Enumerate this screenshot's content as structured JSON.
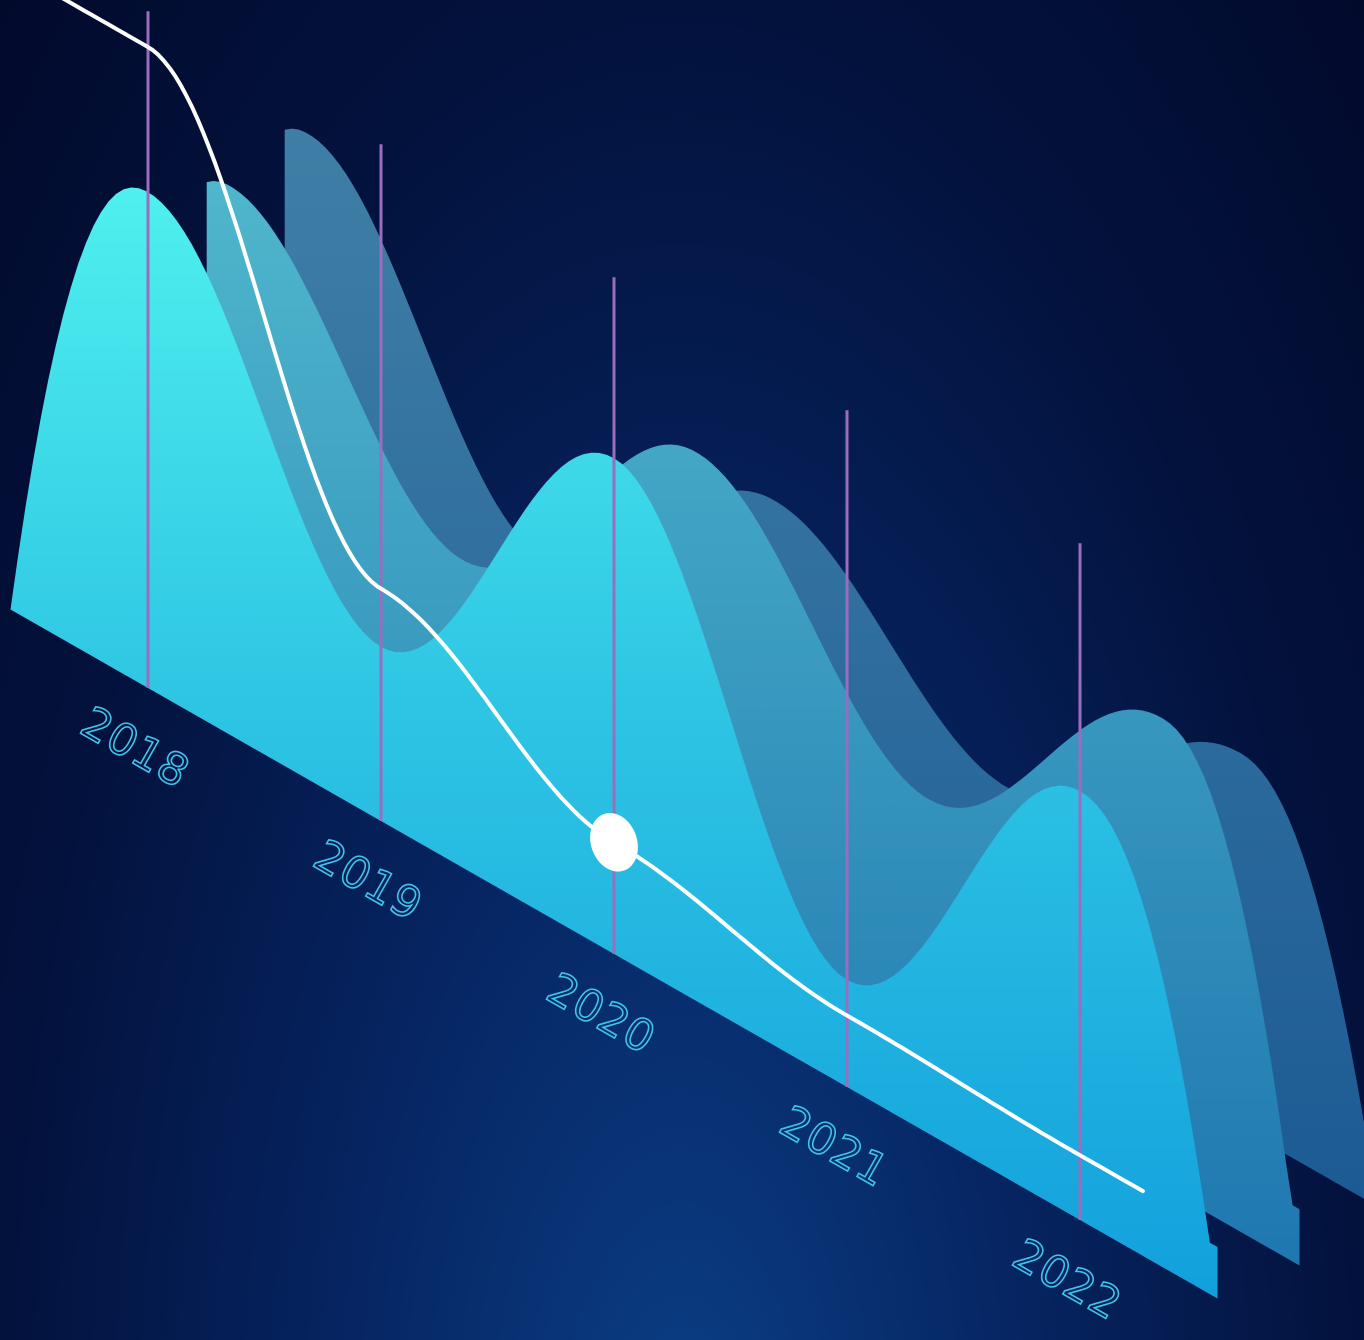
{
  "chart_data": {
    "type": "area",
    "title": "",
    "xlabel": "",
    "ylabel": "",
    "categories": [
      "2018",
      "2019",
      "2020",
      "2021",
      "2022"
    ],
    "series": [
      {
        "values": [
          7.4,
          2.6,
          7.4,
          1.6,
          6.4
        ]
      },
      {
        "values": [
          7.0,
          3.4,
          7.0,
          3.8,
          7.0
        ]
      },
      {
        "values": [
          6.9,
          2.6,
          5.4,
          3.1,
          5.6
        ]
      }
    ],
    "trend_line": {
      "values": [
        9.5,
        3.4,
        1.6,
        1.0,
        0.9
      ],
      "highlight_category": "2020"
    },
    "colors": {
      "front_top": "#4de8ec",
      "front_bottom": "#14a0dc",
      "middle": "#2e8fb8",
      "back": "#2a6a96",
      "gridline": "#9b6dbf",
      "tick_label": "#3fc4ea",
      "trend_line": "#ffffff"
    }
  }
}
